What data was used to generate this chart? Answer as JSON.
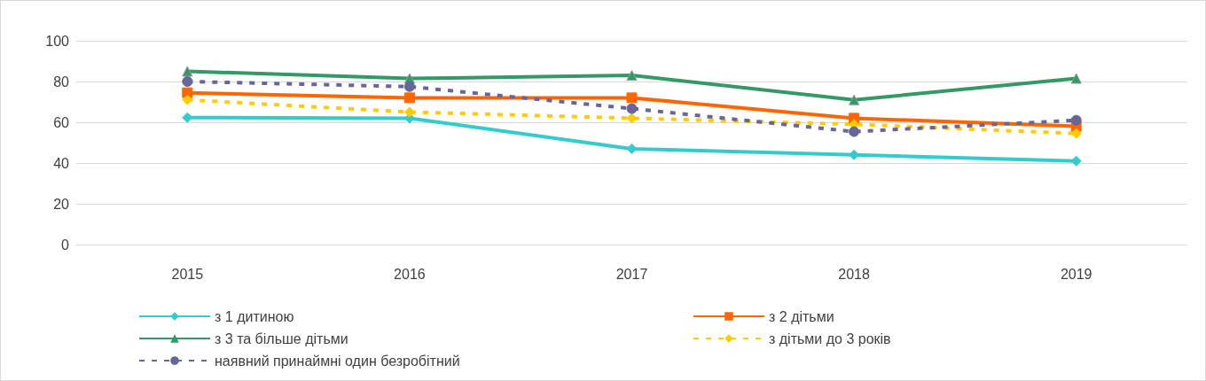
{
  "chart_data": {
    "type": "line",
    "categories": [
      "2015",
      "2016",
      "2017",
      "2018",
      "2019"
    ],
    "series": [
      {
        "name": "з 1 дитиною",
        "color": "#33cccc",
        "marker": "diamond",
        "line_style": "solid",
        "values": [
          62.3,
          62,
          47,
          44,
          41
        ]
      },
      {
        "name": "з 2 дітьми",
        "color": "#ff6600",
        "marker": "square",
        "line_style": "solid",
        "values": [
          74.5,
          72,
          72,
          62,
          58
        ]
      },
      {
        "name": "з 3 та більше дітьми",
        "color": "#339966",
        "marker": "triangle",
        "line_style": "solid",
        "values": [
          85,
          81.5,
          83,
          71,
          81.5
        ]
      },
      {
        "name": "з дітьми до 3 років",
        "color": "#ffcc00",
        "marker": "diamond",
        "line_style": "dashed",
        "values": [
          71,
          65,
          62,
          59,
          54.5
        ]
      },
      {
        "name": "наявний принаймні один безробітний",
        "color": "#666699",
        "marker": "circle",
        "line_style": "dashed",
        "values": [
          80,
          77.5,
          66.7,
          55.4,
          61
        ]
      }
    ],
    "ylim": [
      0,
      100
    ],
    "yticks": [
      0,
      20,
      40,
      60,
      80,
      100
    ],
    "grid": "y",
    "legend": "bottom"
  }
}
